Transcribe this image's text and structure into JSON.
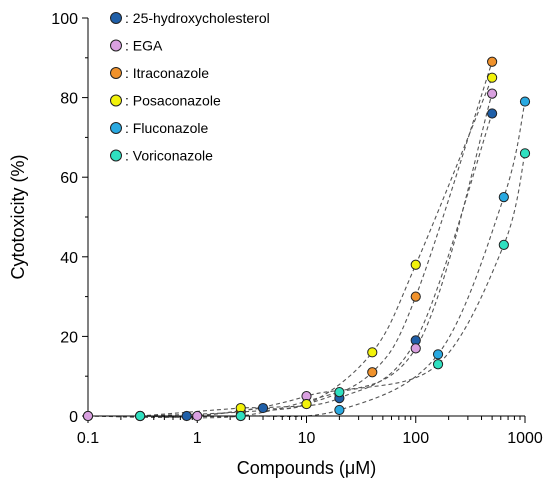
{
  "chart_data": {
    "type": "scatter",
    "title": "",
    "xlabel": "Compounds (μM)",
    "ylabel": "Cytotoxicity (%)",
    "x_scale": "log",
    "xlim": [
      0.1,
      1000
    ],
    "ylim": [
      0,
      100
    ],
    "x_ticks": [
      0.1,
      1,
      10,
      100,
      1000
    ],
    "x_tick_labels": [
      "0.1",
      "1",
      "10",
      "100",
      "1000"
    ],
    "y_ticks": [
      0,
      20,
      40,
      60,
      80,
      100
    ],
    "y_tick_labels": [
      "0",
      "20",
      "40",
      "60",
      "80",
      "100"
    ],
    "grid": false,
    "legend_position": "top-left",
    "connector_style": "dashed",
    "series": [
      {
        "name": ": 25-hydroxycholesterol",
        "color": "#1f5fa8",
        "x": [
          0.1,
          0.8,
          4,
          20,
          100,
          500
        ],
        "y": [
          0,
          0,
          2,
          4.5,
          19,
          76
        ]
      },
      {
        "name": ": EGA",
        "color": "#d9a0e0",
        "x": [
          0.1,
          1,
          10,
          100,
          500
        ],
        "y": [
          0,
          0,
          5,
          17,
          81
        ]
      },
      {
        "name": ": Itraconazole",
        "color": "#f0922c",
        "x": [
          0.3,
          2.5,
          10,
          40,
          100,
          500
        ],
        "y": [
          0,
          1,
          3,
          11,
          30,
          89
        ]
      },
      {
        "name": ": Posaconazole",
        "color": "#f2f20a",
        "x": [
          0.3,
          2.5,
          10,
          40,
          100,
          500
        ],
        "y": [
          0,
          2,
          3,
          16,
          38,
          85
        ]
      },
      {
        "name": ": Fluconazole",
        "color": "#29a9e1",
        "x": [
          0.3,
          2.5,
          20,
          160,
          640,
          1000
        ],
        "y": [
          0,
          0,
          1.5,
          15.5,
          55,
          79
        ]
      },
      {
        "name": ": Voriconazole",
        "color": "#2fe0c0",
        "x": [
          0.3,
          2.5,
          20,
          160,
          640,
          1000
        ],
        "y": [
          0,
          0,
          6,
          13,
          43,
          66
        ]
      }
    ]
  }
}
